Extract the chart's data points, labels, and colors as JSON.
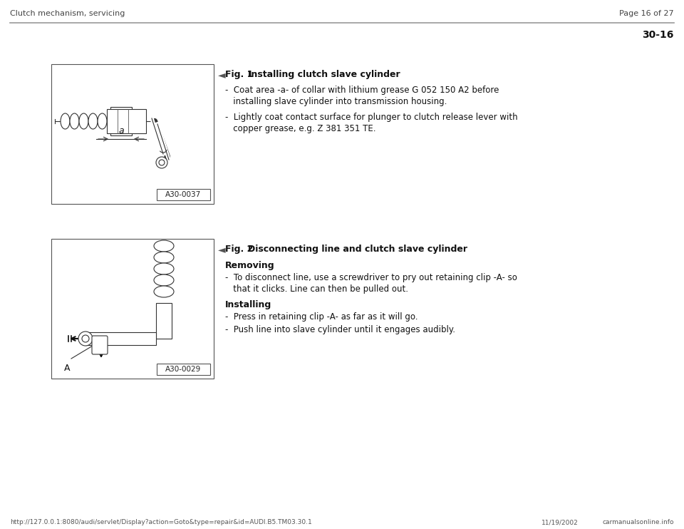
{
  "bg_color": "#ffffff",
  "header_left": "Clutch mechanism, servicing",
  "header_right": "Page 16 of 27",
  "section_number": "30-16",
  "footer_url": "http://127.0.0.1:8080/audi/servlet/Display?action=Goto&type=repair&id=AUDI.B5.TM03.30.1",
  "footer_date": "11/19/2002",
  "footer_logo": "carmanualsonline.info",
  "fig1_label_num": "Fig. 1",
  "fig1_label_title": "    Installing clutch slave cylinder",
  "fig1_bullet1a": "-  Coat area -a- of collar with lithium grease G 052 150 A2 before",
  "fig1_bullet1b": "   installing slave cylinder into transmission housing.",
  "fig1_bullet2a": "-  Lightly coat contact surface for plunger to clutch release lever with",
  "fig1_bullet2b": "   copper grease, e.g. Z 381 351 TE.",
  "fig1_image_label": "A30-0037",
  "fig2_label_num": "Fig. 2",
  "fig2_label_title": "    Disconnecting line and clutch slave cylinder",
  "fig2_removing_bold": "Removing",
  "fig2_bullet1a": "-  To disconnect line, use a screwdriver to pry out retaining clip -A- so",
  "fig2_bullet1b": "   that it clicks. Line can then be pulled out.",
  "fig2_installing_bold": "Installing",
  "fig2_install_bullet1": "-  Press in retaining clip -A- as far as it will go.",
  "fig2_install_bullet2": "-  Push line into slave cylinder until it engages audibly.",
  "fig2_image_label": "A30-0029",
  "line_color": "#888888",
  "text_color": "#111111",
  "header_color": "#444444"
}
